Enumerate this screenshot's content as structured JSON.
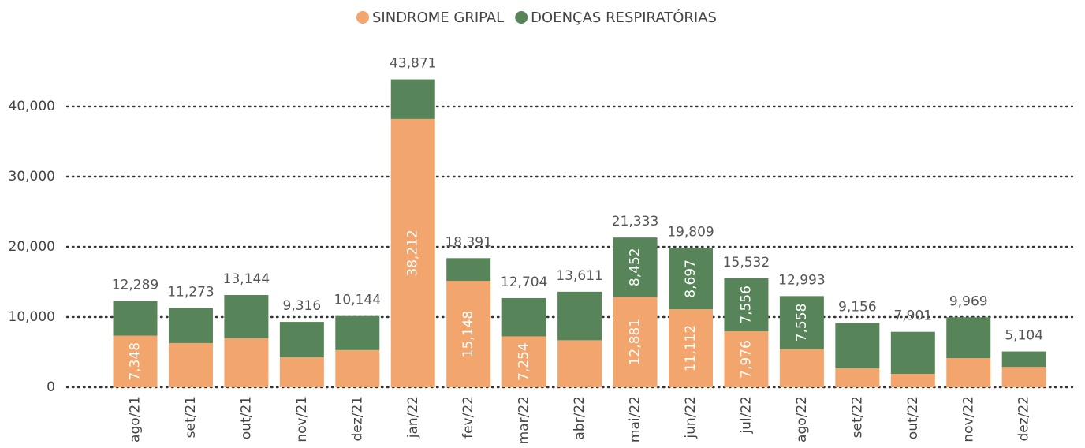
{
  "chart_data": {
    "type": "stacked-bar",
    "categories": [
      "ago/21",
      "set/21",
      "out/21",
      "nov/21",
      "dez/21",
      "jan/22",
      "fev/22",
      "mar/22",
      "abr/22",
      "mai/22",
      "jun/22",
      "jul/22",
      "ago/22",
      "set/22",
      "out/22",
      "nov/22",
      "dez/22"
    ],
    "series": [
      {
        "name": "SINDROME GRIPAL",
        "color": "#f2a56c",
        "values": [
          7348,
          6300,
          7000,
          4270,
          5300,
          38212,
          15148,
          7254,
          6700,
          12881,
          11112,
          7976,
          5435,
          2700,
          1900,
          4150,
          2900
        ],
        "value_labels": [
          "7,348",
          null,
          null,
          null,
          null,
          "38,212",
          "15,148",
          "7,254",
          null,
          "12,881",
          "11,112",
          "7,976",
          null,
          null,
          null,
          null,
          null
        ]
      },
      {
        "name": "DOENÇAS RESPIRATÓRIAS",
        "color": "#58845a",
        "values": [
          4941,
          4973,
          6144,
          5046,
          4844,
          5659,
          3243,
          5450,
          6911,
          8452,
          8697,
          7556,
          7558,
          6456,
          6001,
          5819,
          2204
        ],
        "value_labels": [
          null,
          null,
          null,
          null,
          null,
          null,
          null,
          null,
          null,
          "8,452",
          "8,697",
          "7,556",
          "7,558",
          null,
          null,
          null,
          null
        ]
      }
    ],
    "totals": [
      "12,289",
      "11,273",
      "13,144",
      "9,316",
      "10,144",
      "43,871",
      "18,391",
      "12,704",
      "13,611",
      "21,333",
      "19,809",
      "15,532",
      "12,993",
      "9,156",
      "7,901",
      "9,969",
      "5,104"
    ],
    "ylim": [
      0,
      45000
    ],
    "yticks": [
      0,
      {
        "value": 10000,
        "label": "10,000"
      },
      {
        "value": 20000,
        "label": "20,000"
      },
      {
        "value": 30000,
        "label": "30,000"
      },
      {
        "value": 40000,
        "label": "40,000"
      }
    ],
    "grid": true
  }
}
